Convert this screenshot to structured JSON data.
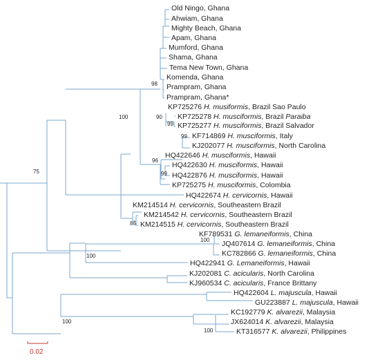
{
  "tree": {
    "leaves": [
      {
        "acc": "",
        "species": "",
        "loc": "Old Ningo, Ghana"
      },
      {
        "acc": "",
        "species": "",
        "loc": "Ahwiam, Ghana"
      },
      {
        "acc": "",
        "species": "",
        "loc": "Mighty Beach, Ghana"
      },
      {
        "acc": "",
        "species": "",
        "loc": "Apam, Ghana"
      },
      {
        "acc": "",
        "species": "",
        "loc": "Mumford, Ghana"
      },
      {
        "acc": "",
        "species": "",
        "loc": "Shama, Ghana"
      },
      {
        "acc": "",
        "species": "",
        "loc": "Tema New Town, Ghana"
      },
      {
        "acc": "",
        "species": "",
        "loc": "Komenda, Ghana"
      },
      {
        "acc": "",
        "species": "",
        "loc": "Prampram, Ghana"
      },
      {
        "acc": "",
        "species": "",
        "loc": "Prampram, Ghana*"
      },
      {
        "acc": "KP725276",
        "species": "H. musiformis",
        "loc": ", Brazil Sao Paulo"
      },
      {
        "acc": "KP725278",
        "species": "H. musciformis",
        "loc": ", Brazil ",
        "loc_italic": "Paraiba"
      },
      {
        "acc": "KP725277",
        "species": "H. musciformis",
        "loc": ", Brazil Salvador"
      },
      {
        "acc": "KF714869",
        "species": "H. musciformis",
        "loc": ", Italy"
      },
      {
        "acc": "KJ202077",
        "species": "H. musciformis",
        "loc": ", North Carolina"
      },
      {
        "acc": "HQ422646",
        "species": "H. musciformis",
        "loc": ", Hawaii"
      },
      {
        "acc": "HQ422630",
        "species": "H. musciformis",
        "loc": ", Hawaii"
      },
      {
        "acc": "HQ422876",
        "species": "H. musciformis",
        "loc": ", Hawaii"
      },
      {
        "acc": "KP725275",
        "species": "H. musciformis",
        "loc": ", Colombia"
      },
      {
        "acc": "HQ422674",
        "species": "H. cervicornis",
        "loc": ", Hawaii"
      },
      {
        "acc": "KM214514",
        "species": "H. cervicornis",
        "loc": ", Southeastern Brazil"
      },
      {
        "acc": "KM214542",
        "species": "H. cervicornis",
        "loc": ", Southeastern Brazil"
      },
      {
        "acc": "KM214515",
        "species": "H. cervicornis",
        "loc": ", Southeastern Brazil"
      },
      {
        "acc": "KF789531",
        "species": "G. lemaneiformis",
        "loc": ", China"
      },
      {
        "acc": "JQ407614",
        "species": "G. lemaneiformis",
        "loc": ", China"
      },
      {
        "acc": "KC782866",
        "species": "G. lemaneiformis",
        "loc": ", China"
      },
      {
        "acc": "HQ422941",
        "species": "G. Lemaneiformis",
        "loc": ", Hawaii"
      },
      {
        "acc": "KJ202081",
        "species": "C. acicularis",
        "loc": ", North Carolina"
      },
      {
        "acc": "KJ960534",
        "species": "C. acicularis",
        "loc": ", France Brittany"
      },
      {
        "acc": "HQ422604",
        "species": "L. majuscula",
        "loc": ", Hawaii"
      },
      {
        "acc": "GU223887",
        "species": "L. majuscula",
        "loc": ", Hawaii"
      },
      {
        "acc": "KC192779",
        "species": "K. alvarezii",
        "loc": ", Malaysia"
      },
      {
        "acc": "JX624014",
        "species": "K. alvarezii",
        "loc": ", Malaysia"
      },
      {
        "acc": "KT316577",
        "species": "K. alvarezii",
        "loc": ", Philippines"
      }
    ],
    "support_values": [
      "98",
      "90",
      "99",
      "100",
      "99",
      "96",
      "99",
      "75",
      "86",
      "100",
      "100",
      "100",
      "100"
    ],
    "scale_bar": {
      "label": "0.02"
    },
    "colors": {
      "branch": "#7aa7cf",
      "scale": "#c0392b",
      "text": "#222222"
    }
  }
}
